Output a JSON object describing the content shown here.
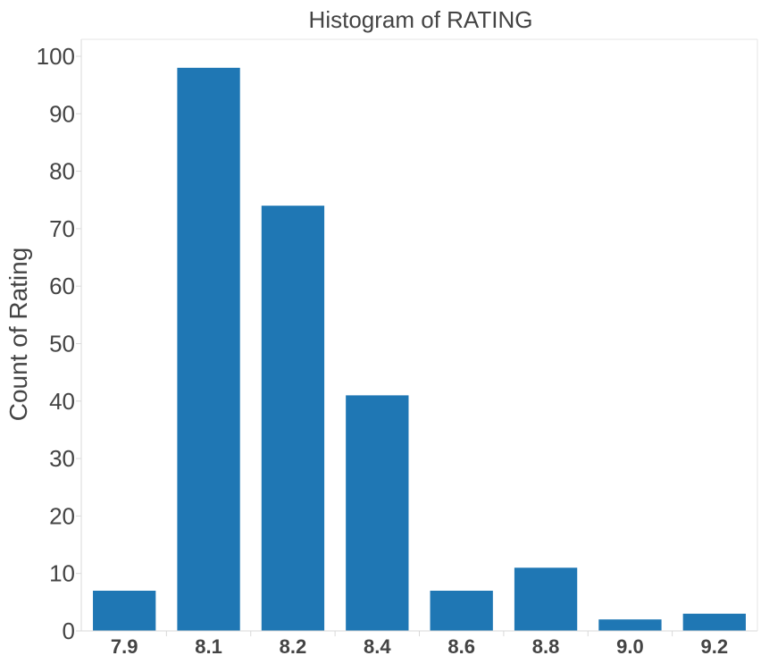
{
  "chart_data": {
    "type": "bar",
    "title": "Histogram of RATING",
    "xlabel": "",
    "ylabel": "Count of Rating",
    "categories": [
      "7.9",
      "8.1",
      "8.2",
      "8.4",
      "8.6",
      "8.8",
      "9.0",
      "9.2"
    ],
    "values": [
      7,
      98,
      74,
      41,
      7,
      11,
      2,
      3
    ],
    "ylim": [
      0,
      100
    ],
    "yticks": [
      "0",
      "10",
      "20",
      "30",
      "40",
      "50",
      "60",
      "70",
      "80",
      "90",
      "100"
    ],
    "grid": false,
    "bar_color": "#1f77b4"
  }
}
